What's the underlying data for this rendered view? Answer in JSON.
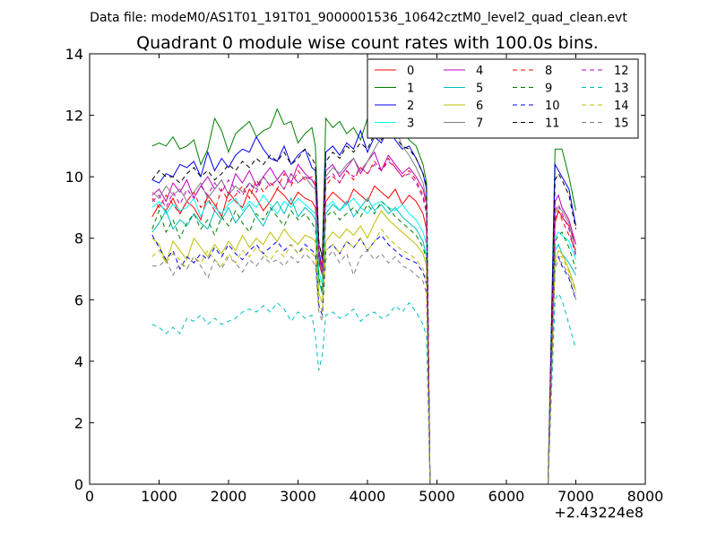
{
  "chart_data": {
    "type": "line",
    "suptitle": "Data file: modeM0/AS1T01_191T01_9000001536_10642cztM0_level2_quad_clean.evt",
    "title": "Quadrant 0 module wise count rates with 100.0s bins.",
    "xlabel": "",
    "ylabel": "",
    "x_offset_label": "+2.43224e8",
    "xlim": [
      0,
      8000
    ],
    "ylim": [
      0,
      14
    ],
    "xticks": [
      0,
      1000,
      2000,
      3000,
      4000,
      5000,
      6000,
      7000,
      8000
    ],
    "yticks": [
      0,
      2,
      4,
      6,
      8,
      10,
      12,
      14
    ],
    "grid": false,
    "legend_position": "top-right",
    "legend_columns": 4,
    "x": [
      900,
      1000,
      1100,
      1200,
      1300,
      1400,
      1500,
      1600,
      1700,
      1800,
      1900,
      2000,
      2100,
      2200,
      2300,
      2400,
      2500,
      2600,
      2700,
      2800,
      2900,
      3000,
      3100,
      3200,
      3250,
      3300,
      3350,
      3400,
      3500,
      3600,
      3700,
      3800,
      3900,
      4000,
      4100,
      4200,
      4300,
      4400,
      4500,
      4600,
      4700,
      4800,
      4850,
      4900,
      5000,
      5500,
      6000,
      6500,
      6600,
      6700,
      6750,
      6800,
      6900,
      7000
    ],
    "series": [
      {
        "name": "0",
        "color": "#ff0000",
        "style": "solid",
        "values": [
          8.7,
          9.1,
          8.9,
          9.3,
          8.8,
          9.2,
          9.0,
          8.6,
          9.4,
          9.1,
          8.7,
          9.5,
          9.2,
          9.0,
          9.6,
          9.3,
          8.9,
          9.2,
          9.6,
          9.4,
          9.1,
          9.5,
          9.3,
          9.2,
          9.0,
          7.2,
          6.8,
          9.2,
          9.5,
          9.3,
          9.1,
          9.6,
          9.4,
          9.2,
          9.7,
          9.5,
          9.3,
          9.6,
          9.1,
          9.4,
          9.2,
          8.8,
          8.3,
          0.0,
          0.0,
          0.0,
          0.0,
          0.0,
          0.0,
          8.5,
          8.9,
          8.7,
          8.4,
          7.8
        ]
      },
      {
        "name": "1",
        "color": "#008000",
        "style": "solid",
        "values": [
          11.0,
          11.1,
          11.0,
          11.3,
          10.9,
          11.0,
          11.2,
          10.4,
          10.9,
          11.9,
          11.5,
          10.8,
          11.4,
          11.6,
          11.8,
          11.3,
          11.5,
          11.6,
          12.2,
          11.7,
          11.8,
          11.1,
          11.4,
          11.6,
          11.0,
          7.8,
          7.4,
          11.9,
          11.6,
          11.8,
          11.4,
          11.6,
          11.2,
          11.9,
          12.0,
          11.5,
          12.3,
          11.8,
          11.6,
          11.2,
          11.0,
          10.4,
          9.8,
          0.0,
          0.0,
          0.0,
          0.0,
          0.0,
          0.0,
          10.9,
          10.9,
          10.9,
          10.0,
          8.9
        ]
      },
      {
        "name": "2",
        "color": "#0000ff",
        "style": "solid",
        "values": [
          9.9,
          9.8,
          10.1,
          10.0,
          10.4,
          10.3,
          10.5,
          10.0,
          10.8,
          10.2,
          10.6,
          10.3,
          10.7,
          10.9,
          10.8,
          11.3,
          10.9,
          10.6,
          10.5,
          11.0,
          10.4,
          10.7,
          10.9,
          10.3,
          10.2,
          7.6,
          7.0,
          10.8,
          11.0,
          10.7,
          11.1,
          10.9,
          11.5,
          10.8,
          11.3,
          11.1,
          11.6,
          11.2,
          10.9,
          11.0,
          10.6,
          10.1,
          9.6,
          0.0,
          0.0,
          0.0,
          0.0,
          0.0,
          0.0,
          10.4,
          10.2,
          10.0,
          9.6,
          8.4
        ]
      },
      {
        "name": "3",
        "color": "#00ffff",
        "style": "solid",
        "values": [
          9.0,
          9.2,
          8.8,
          9.1,
          8.9,
          9.0,
          9.3,
          8.7,
          9.2,
          9.0,
          8.8,
          9.1,
          9.3,
          8.9,
          9.2,
          9.0,
          9.4,
          9.1,
          8.8,
          9.2,
          9.0,
          9.3,
          9.1,
          8.9,
          8.8,
          6.9,
          6.5,
          9.0,
          9.2,
          8.9,
          9.1,
          9.3,
          9.0,
          8.8,
          9.1,
          9.2,
          9.0,
          8.9,
          9.1,
          8.8,
          8.6,
          8.2,
          7.8,
          0.0,
          0.0,
          0.0,
          0.0,
          0.0,
          0.0,
          8.0,
          8.2,
          8.1,
          7.9,
          7.3
        ]
      },
      {
        "name": "4",
        "color": "#bf00bf",
        "style": "solid",
        "values": [
          9.4,
          9.6,
          9.2,
          9.8,
          9.5,
          9.9,
          9.3,
          9.7,
          10.0,
          9.6,
          9.9,
          9.4,
          10.1,
          9.8,
          10.2,
          9.7,
          10.0,
          10.3,
          9.9,
          10.2,
          9.8,
          10.4,
          10.1,
          9.9,
          9.7,
          7.4,
          7.0,
          10.2,
          10.4,
          10.0,
          10.3,
          10.6,
          10.1,
          10.5,
          10.8,
          10.2,
          10.7,
          10.4,
          10.1,
          10.3,
          10.0,
          9.6,
          9.1,
          0.0,
          0.0,
          0.0,
          0.0,
          0.0,
          0.0,
          9.2,
          9.4,
          9.0,
          8.6,
          7.8
        ]
      },
      {
        "name": "5",
        "color": "#00bfbf",
        "style": "solid",
        "values": [
          8.2,
          8.5,
          8.9,
          8.3,
          8.6,
          8.4,
          8.8,
          8.5,
          8.3,
          8.9,
          8.6,
          9.0,
          8.5,
          8.8,
          9.1,
          8.7,
          8.4,
          8.9,
          9.2,
          8.8,
          9.3,
          8.7,
          9.0,
          8.8,
          8.6,
          6.6,
          6.2,
          8.8,
          9.1,
          8.9,
          9.2,
          8.7,
          9.0,
          9.3,
          8.9,
          9.1,
          8.8,
          9.0,
          8.7,
          8.5,
          8.3,
          7.9,
          7.4,
          0.0,
          0.0,
          0.0,
          0.0,
          0.0,
          0.0,
          7.6,
          7.8,
          7.5,
          7.2,
          6.8
        ]
      },
      {
        "name": "6",
        "color": "#bfbf00",
        "style": "solid",
        "values": [
          8.0,
          7.8,
          7.2,
          7.9,
          7.6,
          7.3,
          8.0,
          7.7,
          7.4,
          7.8,
          7.5,
          7.9,
          7.6,
          8.1,
          7.7,
          8.0,
          7.8,
          8.2,
          7.9,
          8.3,
          8.0,
          7.8,
          8.1,
          8.0,
          7.9,
          6.2,
          5.9,
          7.9,
          8.2,
          8.0,
          8.3,
          8.1,
          8.4,
          8.0,
          8.5,
          8.9,
          8.6,
          8.4,
          8.2,
          8.0,
          7.8,
          7.5,
          7.1,
          0.0,
          0.0,
          0.0,
          0.0,
          0.0,
          0.0,
          7.3,
          7.6,
          7.5,
          7.0,
          6.3
        ]
      },
      {
        "name": "7",
        "color": "#808080",
        "style": "solid",
        "values": [
          9.5,
          9.3,
          9.7,
          9.4,
          9.6,
          9.2,
          9.5,
          9.8,
          9.3,
          9.6,
          9.9,
          9.4,
          9.7,
          9.5,
          9.8,
          9.6,
          10.0,
          9.7,
          9.9,
          9.6,
          10.1,
          9.8,
          10.0,
          9.7,
          9.6,
          7.3,
          6.9,
          10.0,
          10.3,
          10.1,
          10.4,
          10.6,
          10.2,
          10.5,
          10.9,
          11.3,
          12.6,
          11.6,
          11.0,
          10.7,
          10.3,
          9.8,
          9.2,
          0.0,
          0.0,
          0.0,
          0.0,
          0.0,
          0.0,
          8.8,
          9.0,
          8.9,
          8.5,
          7.5
        ]
      },
      {
        "name": "8",
        "color": "#ff0000",
        "style": "dashed",
        "values": [
          9.3,
          9.0,
          9.4,
          9.1,
          8.8,
          9.2,
          9.5,
          9.0,
          9.3,
          8.9,
          9.6,
          9.2,
          9.4,
          9.7,
          9.3,
          9.9,
          9.5,
          9.8,
          9.6,
          10.1,
          9.7,
          10.2,
          9.9,
          10.0,
          9.8,
          7.5,
          7.1,
          9.7,
          10.0,
          9.8,
          10.2,
          9.9,
          10.3,
          10.1,
          10.5,
          10.2,
          10.6,
          10.3,
          10.0,
          10.2,
          9.9,
          9.4,
          8.9,
          0.0,
          0.0,
          0.0,
          0.0,
          0.0,
          0.0,
          8.6,
          8.9,
          8.6,
          8.1,
          7.6
        ]
      },
      {
        "name": "9",
        "color": "#008000",
        "style": "dashed",
        "values": [
          8.3,
          8.9,
          8.2,
          8.6,
          8.0,
          8.5,
          8.8,
          8.3,
          8.6,
          8.1,
          8.7,
          8.4,
          8.9,
          8.5,
          8.2,
          8.8,
          8.6,
          9.0,
          8.7,
          8.4,
          8.9,
          8.6,
          8.8,
          8.5,
          8.3,
          6.7,
          6.3,
          8.7,
          8.9,
          8.6,
          8.8,
          9.0,
          8.7,
          9.1,
          8.8,
          9.2,
          9.0,
          8.7,
          8.5,
          8.3,
          8.1,
          7.7,
          7.3,
          0.0,
          0.0,
          0.0,
          0.0,
          0.0,
          0.0,
          7.9,
          8.1,
          8.2,
          7.7,
          7.0
        ]
      },
      {
        "name": "10",
        "color": "#0000ff",
        "style": "dashed",
        "values": [
          8.1,
          7.7,
          7.3,
          7.6,
          7.0,
          7.4,
          7.2,
          7.5,
          7.3,
          7.7,
          7.4,
          7.8,
          7.5,
          7.3,
          7.6,
          7.8,
          7.5,
          7.7,
          7.9,
          7.6,
          7.8,
          7.5,
          7.8,
          7.6,
          7.5,
          5.8,
          5.5,
          7.6,
          7.8,
          7.5,
          7.9,
          7.7,
          8.0,
          7.6,
          7.9,
          8.1,
          7.8,
          7.6,
          7.4,
          7.3,
          7.2,
          6.9,
          6.5,
          0.0,
          0.0,
          0.0,
          0.0,
          0.0,
          0.0,
          7.2,
          7.4,
          7.1,
          6.7,
          6.0
        ]
      },
      {
        "name": "11",
        "color": "#000000",
        "style": "dashed",
        "values": [
          9.9,
          10.2,
          10.0,
          10.0,
          9.8,
          10.1,
          10.3,
          10.0,
          10.2,
          9.9,
          10.1,
          10.4,
          10.2,
          10.5,
          10.3,
          10.6,
          10.4,
          10.7,
          10.5,
          10.8,
          10.4,
          10.6,
          10.9,
          10.6,
          10.4,
          7.9,
          7.3,
          10.5,
          10.8,
          10.6,
          11.0,
          10.8,
          11.1,
          10.9,
          11.4,
          11.2,
          11.6,
          11.3,
          11.0,
          10.9,
          10.6,
          10.1,
          9.7,
          0.0,
          0.0,
          0.0,
          0.0,
          0.0,
          0.0,
          9.9,
          10.1,
          9.9,
          9.4,
          8.3
        ]
      },
      {
        "name": "12",
        "color": "#bf00bf",
        "style": "dashed",
        "values": [
          9.2,
          9.4,
          9.0,
          9.5,
          9.1,
          9.6,
          9.3,
          9.7,
          9.4,
          9.8,
          9.5,
          9.9,
          9.6,
          9.4,
          9.8,
          9.5,
          10.0,
          9.7,
          9.9,
          9.6,
          10.1,
          9.8,
          10.0,
          9.9,
          9.7,
          7.3,
          6.9,
          9.9,
          10.1,
          9.8,
          10.2,
          10.0,
          10.3,
          10.1,
          10.4,
          10.2,
          10.5,
          10.3,
          10.0,
          10.1,
          9.8,
          9.3,
          8.8,
          0.0,
          0.0,
          0.0,
          0.0,
          0.0,
          0.0,
          8.9,
          9.1,
          8.8,
          8.3,
          7.4
        ]
      },
      {
        "name": "13",
        "color": "#00bfbf",
        "style": "dashed",
        "values": [
          5.2,
          5.1,
          4.9,
          5.1,
          4.9,
          5.4,
          5.3,
          5.5,
          5.2,
          5.4,
          5.2,
          5.3,
          5.4,
          5.6,
          5.7,
          5.6,
          5.8,
          5.6,
          5.9,
          5.7,
          5.3,
          5.6,
          5.4,
          5.5,
          4.8,
          3.7,
          4.2,
          5.5,
          5.6,
          5.4,
          5.5,
          5.7,
          5.3,
          5.5,
          5.6,
          5.4,
          5.5,
          5.8,
          5.6,
          5.9,
          5.6,
          5.2,
          4.8,
          0.0,
          0.0,
          0.0,
          0.0,
          0.0,
          0.0,
          6.0,
          6.2,
          6.0,
          5.2,
          4.4
        ]
      },
      {
        "name": "14",
        "color": "#bfbf00",
        "style": "dashed",
        "values": [
          7.4,
          7.6,
          7.2,
          7.5,
          7.3,
          7.0,
          7.4,
          7.2,
          7.6,
          7.3,
          7.1,
          7.5,
          7.2,
          7.6,
          7.4,
          7.7,
          7.5,
          7.3,
          7.6,
          7.4,
          7.8,
          7.5,
          7.7,
          7.5,
          7.4,
          5.9,
          5.6,
          7.6,
          7.8,
          7.5,
          7.9,
          7.7,
          8.0,
          7.6,
          7.9,
          8.3,
          8.0,
          7.8,
          7.6,
          7.5,
          7.3,
          7.0,
          6.6,
          0.0,
          0.0,
          0.0,
          0.0,
          0.0,
          0.0,
          7.2,
          7.4,
          7.4,
          6.9,
          6.2
        ]
      },
      {
        "name": "15",
        "color": "#808080",
        "style": "dashed",
        "values": [
          7.1,
          7.1,
          7.3,
          6.8,
          7.2,
          7.0,
          7.4,
          7.1,
          6.7,
          7.3,
          7.0,
          7.4,
          7.2,
          6.9,
          7.3,
          7.1,
          7.4,
          7.2,
          7.3,
          7.1,
          7.4,
          7.2,
          7.5,
          7.3,
          7.1,
          5.6,
          5.3,
          7.3,
          7.6,
          7.2,
          7.5,
          6.8,
          7.4,
          7.6,
          7.3,
          7.5,
          7.2,
          7.4,
          7.1,
          7.0,
          6.8,
          6.6,
          6.2,
          0.0,
          0.0,
          0.0,
          0.0,
          0.0,
          0.0,
          7.0,
          7.3,
          7.2,
          6.8,
          6.0
        ]
      }
    ]
  }
}
